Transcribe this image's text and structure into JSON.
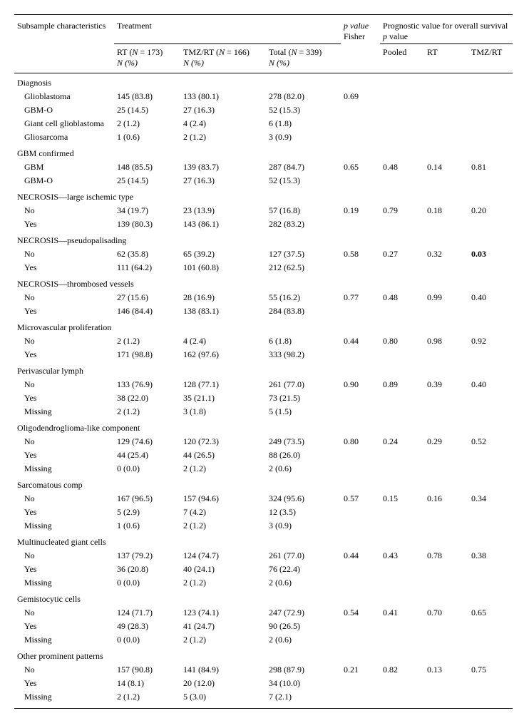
{
  "headers": {
    "subsample": "Subsample characteristics",
    "treatment": "Treatment",
    "pvalue": "p value",
    "fisher": "Fisher",
    "prognostic": "Prognostic value for overall survival p value",
    "rt_head": "RT (N = 173)",
    "tmzrt_head": "TMZ/RT (N = 166)",
    "total_head": "Total (N = 339)",
    "npct": "N (%)",
    "pooled": "Pooled",
    "rt": "RT",
    "tmzrt": "TMZ/RT"
  },
  "sections": [
    {
      "title": "Diagnosis",
      "rows": [
        {
          "label": "Glioblastoma",
          "rt": "145 (83.8)",
          "tmz": "133 (80.1)",
          "tot": "278 (82.0)",
          "p": "0.69",
          "po": "",
          "r": "",
          "t": ""
        },
        {
          "label": "GBM-O",
          "rt": "25 (14.5)",
          "tmz": "27 (16.3)",
          "tot": "52 (15.3)",
          "p": "",
          "po": "",
          "r": "",
          "t": ""
        },
        {
          "label": "Giant cell glioblastoma",
          "rt": "2 (1.2)",
          "tmz": "4 (2.4)",
          "tot": "6 (1.8)",
          "p": "",
          "po": "",
          "r": "",
          "t": ""
        },
        {
          "label": "Gliosarcoma",
          "rt": "1 (0.6)",
          "tmz": "2 (1.2)",
          "tot": "3 (0.9)",
          "p": "",
          "po": "",
          "r": "",
          "t": ""
        }
      ]
    },
    {
      "title": "GBM confirmed",
      "rows": [
        {
          "label": "GBM",
          "rt": "148 (85.5)",
          "tmz": "139 (83.7)",
          "tot": "287 (84.7)",
          "p": "0.65",
          "po": "0.48",
          "r": "0.14",
          "t": "0.81"
        },
        {
          "label": "GBM-O",
          "rt": "25 (14.5)",
          "tmz": "27 (16.3)",
          "tot": "52 (15.3)",
          "p": "",
          "po": "",
          "r": "",
          "t": ""
        }
      ]
    },
    {
      "title": "NECROSIS—large ischemic type",
      "rows": [
        {
          "label": "No",
          "rt": "34 (19.7)",
          "tmz": "23 (13.9)",
          "tot": "57 (16.8)",
          "p": "0.19",
          "po": "0.79",
          "r": "0.18",
          "t": "0.20"
        },
        {
          "label": "Yes",
          "rt": "139 (80.3)",
          "tmz": "143 (86.1)",
          "tot": "282 (83.2)",
          "p": "",
          "po": "",
          "r": "",
          "t": ""
        }
      ]
    },
    {
      "title": "NECROSIS—pseudopalisading",
      "rows": [
        {
          "label": "No",
          "rt": "62 (35.8)",
          "tmz": "65 (39.2)",
          "tot": "127 (37.5)",
          "p": "0.58",
          "po": "0.27",
          "r": "0.32",
          "t": "0.03",
          "tbold": true
        },
        {
          "label": "Yes",
          "rt": "111 (64.2)",
          "tmz": "101 (60.8)",
          "tot": "212 (62.5)",
          "p": "",
          "po": "",
          "r": "",
          "t": ""
        }
      ]
    },
    {
      "title": "NECROSIS—thrombosed vessels",
      "rows": [
        {
          "label": "No",
          "rt": "27 (15.6)",
          "tmz": "28 (16.9)",
          "tot": "55 (16.2)",
          "p": "0.77",
          "po": "0.48",
          "r": "0.99",
          "t": "0.40"
        },
        {
          "label": "Yes",
          "rt": "146 (84.4)",
          "tmz": "138 (83.1)",
          "tot": "284 (83.8)",
          "p": "",
          "po": "",
          "r": "",
          "t": ""
        }
      ]
    },
    {
      "title": "Microvascular proliferation",
      "rows": [
        {
          "label": "No",
          "rt": "2 (1.2)",
          "tmz": "4 (2.4)",
          "tot": "6 (1.8)",
          "p": "0.44",
          "po": "0.80",
          "r": "0.98",
          "t": "0.92"
        },
        {
          "label": "Yes",
          "rt": "171 (98.8)",
          "tmz": "162 (97.6)",
          "tot": "333 (98.2)",
          "p": "",
          "po": "",
          "r": "",
          "t": ""
        }
      ]
    },
    {
      "title": "Perivascular lymph",
      "rows": [
        {
          "label": "No",
          "rt": "133 (76.9)",
          "tmz": "128 (77.1)",
          "tot": "261 (77.0)",
          "p": "0.90",
          "po": "0.89",
          "r": "0.39",
          "t": "0.40"
        },
        {
          "label": "Yes",
          "rt": "38 (22.0)",
          "tmz": "35 (21.1)",
          "tot": "73 (21.5)",
          "p": "",
          "po": "",
          "r": "",
          "t": ""
        },
        {
          "label": "Missing",
          "rt": "2 (1.2)",
          "tmz": "3 (1.8)",
          "tot": "5 (1.5)",
          "p": "",
          "po": "",
          "r": "",
          "t": ""
        }
      ]
    },
    {
      "title": "Oligodendroglioma-like component",
      "rows": [
        {
          "label": "No",
          "rt": "129 (74.6)",
          "tmz": "120 (72.3)",
          "tot": "249 (73.5)",
          "p": "0.80",
          "po": "0.24",
          "r": "0.29",
          "t": "0.52"
        },
        {
          "label": "Yes",
          "rt": "44 (25.4)",
          "tmz": "44 (26.5)",
          "tot": "88 (26.0)",
          "p": "",
          "po": "",
          "r": "",
          "t": ""
        },
        {
          "label": "Missing",
          "rt": "0 (0.0)",
          "tmz": "2 (1.2)",
          "tot": "2 (0.6)",
          "p": "",
          "po": "",
          "r": "",
          "t": ""
        }
      ]
    },
    {
      "title": "Sarcomatous comp",
      "rows": [
        {
          "label": "No",
          "rt": "167 (96.5)",
          "tmz": "157 (94.6)",
          "tot": "324 (95.6)",
          "p": "0.57",
          "po": "0.15",
          "r": "0.16",
          "t": "0.34"
        },
        {
          "label": "Yes",
          "rt": "5 (2.9)",
          "tmz": "7 (4.2)",
          "tot": "12 (3.5)",
          "p": "",
          "po": "",
          "r": "",
          "t": ""
        },
        {
          "label": "Missing",
          "rt": "1 (0.6)",
          "tmz": "2 (1.2)",
          "tot": "3 (0.9)",
          "p": "",
          "po": "",
          "r": "",
          "t": ""
        }
      ]
    },
    {
      "title": "Multinucleated giant cells",
      "rows": [
        {
          "label": "No",
          "rt": "137 (79.2)",
          "tmz": "124 (74.7)",
          "tot": "261 (77.0)",
          "p": "0.44",
          "po": "0.43",
          "r": "0.78",
          "t": "0.38"
        },
        {
          "label": "Yes",
          "rt": "36 (20.8)",
          "tmz": "40 (24.1)",
          "tot": "76 (22.4)",
          "p": "",
          "po": "",
          "r": "",
          "t": ""
        },
        {
          "label": "Missing",
          "rt": "0 (0.0)",
          "tmz": "2 (1.2)",
          "tot": "2 (0.6)",
          "p": "",
          "po": "",
          "r": "",
          "t": ""
        }
      ]
    },
    {
      "title": "Gemistocytic cells",
      "rows": [
        {
          "label": "No",
          "rt": "124 (71.7)",
          "tmz": "123 (74.1)",
          "tot": "247 (72.9)",
          "p": "0.54",
          "po": "0.41",
          "r": "0.70",
          "t": "0.65"
        },
        {
          "label": "Yes",
          "rt": "49 (28.3)",
          "tmz": "41 (24.7)",
          "tot": "90 (26.5)",
          "p": "",
          "po": "",
          "r": "",
          "t": ""
        },
        {
          "label": "Missing",
          "rt": "0 (0.0)",
          "tmz": "2 (1.2)",
          "tot": "2 (0.6)",
          "p": "",
          "po": "",
          "r": "",
          "t": ""
        }
      ]
    },
    {
      "title": "Other prominent patterns",
      "rows": [
        {
          "label": "No",
          "rt": "157 (90.8)",
          "tmz": "141 (84.9)",
          "tot": "298 (87.9)",
          "p": "0.21",
          "po": "0.82",
          "r": "0.13",
          "t": "0.75"
        },
        {
          "label": "Yes",
          "rt": "14 (8.1)",
          "tmz": "20 (12.0)",
          "tot": "34 (10.0)",
          "p": "",
          "po": "",
          "r": "",
          "t": ""
        },
        {
          "label": "Missing",
          "rt": "2 (1.2)",
          "tmz": "5 (3.0)",
          "tot": "7 (2.1)",
          "p": "",
          "po": "",
          "r": "",
          "t": ""
        }
      ]
    }
  ]
}
